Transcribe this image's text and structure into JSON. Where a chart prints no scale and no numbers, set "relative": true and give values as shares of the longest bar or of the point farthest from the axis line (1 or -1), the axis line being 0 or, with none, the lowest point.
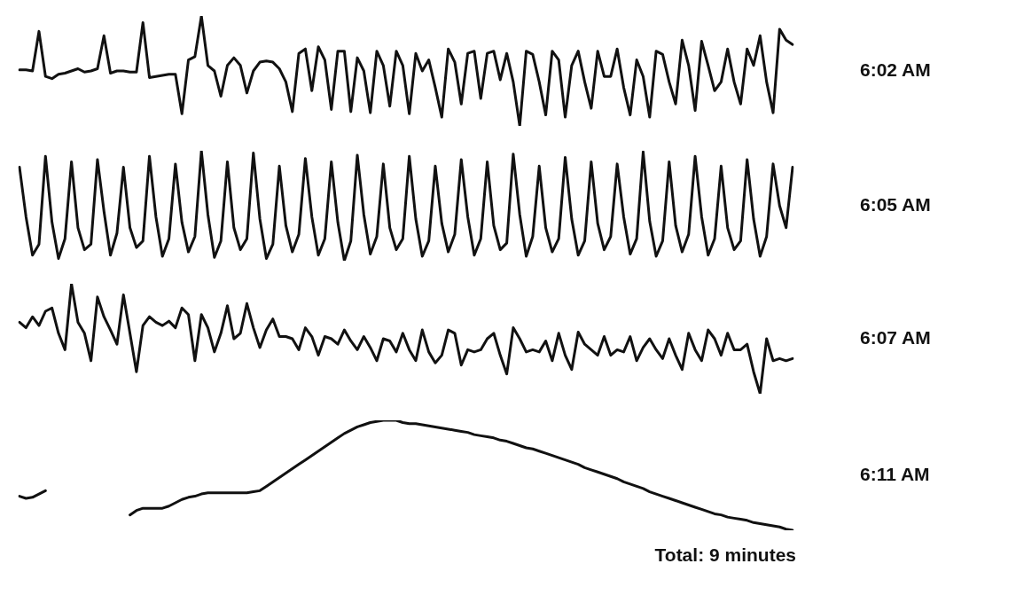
{
  "chart_data": [
    {
      "type": "line",
      "annotations": [
        "6:02 AM"
      ],
      "relative": true,
      "tick_labels": false,
      "categories": [
        null,
        null,
        null,
        null,
        null,
        null,
        null,
        null,
        null,
        null,
        null,
        null,
        null,
        null,
        null,
        null,
        null,
        null,
        null,
        null,
        null,
        null,
        null,
        null,
        null,
        null,
        null,
        null,
        null,
        null,
        null,
        null,
        null,
        null,
        null,
        null,
        null,
        null,
        null,
        null,
        null,
        null,
        null,
        null,
        null,
        null,
        null,
        null,
        null,
        null,
        null,
        null,
        null,
        null,
        null,
        null,
        null,
        null,
        null,
        null,
        null,
        null,
        null,
        null,
        null,
        null,
        null,
        null,
        null,
        null,
        null,
        null,
        null,
        null,
        null,
        null,
        null,
        null,
        null,
        null,
        null,
        null,
        null,
        null,
        null,
        null,
        null,
        null,
        null,
        null,
        null,
        null,
        null,
        null,
        null,
        null,
        null,
        null,
        null,
        null,
        null,
        null,
        null,
        null,
        null,
        null,
        null,
        null,
        null,
        null,
        null,
        null,
        null,
        null,
        null,
        null,
        null,
        null,
        null,
        null
      ],
      "series": [
        {
          "color": "#111111",
          "values": [
            0.51,
            0.51,
            0.5,
            0.86,
            0.45,
            0.43,
            0.47,
            0.48,
            0.5,
            0.52,
            0.49,
            0.5,
            0.52,
            0.82,
            0.48,
            0.5,
            0.5,
            0.49,
            0.49,
            0.94,
            0.44,
            0.45,
            0.46,
            0.47,
            0.47,
            0.11,
            0.6,
            0.63,
            1.0,
            0.55,
            0.5,
            0.27,
            0.55,
            0.62,
            0.55,
            0.3,
            0.5,
            0.58,
            0.59,
            0.58,
            0.52,
            0.4,
            0.13,
            0.66,
            0.7,
            0.32,
            0.72,
            0.6,
            0.15,
            0.68,
            0.68,
            0.13,
            0.62,
            0.5,
            0.12,
            0.68,
            0.55,
            0.18,
            0.68,
            0.55,
            0.11,
            0.66,
            0.5,
            0.6,
            0.35,
            0.08,
            0.7,
            0.58,
            0.2,
            0.66,
            0.68,
            0.25,
            0.66,
            0.68,
            0.42,
            0.66,
            0.4,
            0.0,
            0.68,
            0.65,
            0.4,
            0.1,
            0.68,
            0.6,
            0.08,
            0.55,
            0.68,
            0.4,
            0.16,
            0.68,
            0.45,
            0.45,
            0.7,
            0.35,
            0.1,
            0.6,
            0.45,
            0.08,
            0.68,
            0.65,
            0.4,
            0.2,
            0.78,
            0.55,
            0.14,
            0.77,
            0.55,
            0.32,
            0.4,
            0.7,
            0.4,
            0.2,
            0.7,
            0.55,
            0.82,
            0.4,
            0.12,
            0.88,
            0.78,
            0.74
          ]
        }
      ]
    },
    {
      "type": "line",
      "annotations": [
        "6:05 AM"
      ],
      "relative": true,
      "tick_labels": false,
      "categories": [
        null,
        null,
        null,
        null,
        null,
        null,
        null,
        null,
        null,
        null,
        null,
        null,
        null,
        null,
        null,
        null,
        null,
        null,
        null,
        null,
        null,
        null,
        null,
        null,
        null,
        null,
        null,
        null,
        null,
        null,
        null,
        null,
        null,
        null,
        null,
        null,
        null,
        null,
        null,
        null,
        null,
        null,
        null,
        null,
        null,
        null,
        null,
        null,
        null,
        null,
        null,
        null,
        null,
        null,
        null,
        null,
        null,
        null,
        null,
        null,
        null,
        null,
        null,
        null,
        null,
        null,
        null,
        null,
        null,
        null,
        null,
        null,
        null,
        null,
        null,
        null,
        null,
        null,
        null,
        null,
        null,
        null,
        null,
        null,
        null,
        null,
        null,
        null,
        null,
        null,
        null,
        null,
        null,
        null,
        null,
        null,
        null,
        null,
        null,
        null,
        null,
        null,
        null,
        null,
        null,
        null,
        null,
        null,
        null,
        null,
        null,
        null,
        null,
        null,
        null,
        null,
        null,
        null,
        null,
        null
      ],
      "series": [
        {
          "color": "#111111",
          "values": [
            0.85,
            0.4,
            0.05,
            0.15,
            0.95,
            0.35,
            0.02,
            0.2,
            0.9,
            0.3,
            0.1,
            0.15,
            0.92,
            0.45,
            0.05,
            0.25,
            0.85,
            0.3,
            0.12,
            0.18,
            0.95,
            0.4,
            0.04,
            0.2,
            0.88,
            0.35,
            0.08,
            0.22,
            1.0,
            0.42,
            0.03,
            0.18,
            0.9,
            0.3,
            0.1,
            0.2,
            0.98,
            0.38,
            0.02,
            0.15,
            0.86,
            0.32,
            0.08,
            0.24,
            0.93,
            0.4,
            0.05,
            0.2,
            0.9,
            0.35,
            0.0,
            0.18,
            0.96,
            0.42,
            0.06,
            0.22,
            0.88,
            0.3,
            0.1,
            0.2,
            0.95,
            0.38,
            0.04,
            0.18,
            0.86,
            0.34,
            0.08,
            0.24,
            0.92,
            0.4,
            0.05,
            0.2,
            0.9,
            0.32,
            0.1,
            0.16,
            0.97,
            0.42,
            0.04,
            0.22,
            0.86,
            0.3,
            0.08,
            0.2,
            0.94,
            0.38,
            0.05,
            0.18,
            0.9,
            0.34,
            0.1,
            0.22,
            0.88,
            0.4,
            0.06,
            0.2,
            0.99,
            0.36,
            0.04,
            0.18,
            0.9,
            0.32,
            0.08,
            0.24,
            0.95,
            0.4,
            0.05,
            0.2,
            0.86,
            0.3,
            0.1,
            0.18,
            0.92,
            0.38,
            0.04,
            0.22,
            0.88,
            0.5,
            0.3,
            0.85
          ]
        }
      ]
    },
    {
      "type": "line",
      "annotations": [
        "6:07 AM"
      ],
      "relative": true,
      "tick_labels": false,
      "categories": [
        null,
        null,
        null,
        null,
        null,
        null,
        null,
        null,
        null,
        null,
        null,
        null,
        null,
        null,
        null,
        null,
        null,
        null,
        null,
        null,
        null,
        null,
        null,
        null,
        null,
        null,
        null,
        null,
        null,
        null,
        null,
        null,
        null,
        null,
        null,
        null,
        null,
        null,
        null,
        null,
        null,
        null,
        null,
        null,
        null,
        null,
        null,
        null,
        null,
        null,
        null,
        null,
        null,
        null,
        null,
        null,
        null,
        null,
        null,
        null,
        null,
        null,
        null,
        null,
        null,
        null,
        null,
        null,
        null,
        null,
        null,
        null,
        null,
        null,
        null,
        null,
        null,
        null,
        null,
        null,
        null,
        null,
        null,
        null,
        null,
        null,
        null,
        null,
        null,
        null,
        null,
        null,
        null,
        null,
        null,
        null,
        null,
        null,
        null,
        null,
        null,
        null,
        null,
        null,
        null,
        null,
        null,
        null,
        null,
        null,
        null,
        null,
        null,
        null,
        null,
        null,
        null,
        null,
        null,
        null
      ],
      "series": [
        {
          "color": "#111111",
          "values": [
            0.65,
            0.6,
            0.7,
            0.62,
            0.75,
            0.78,
            0.55,
            0.4,
            1.0,
            0.65,
            0.55,
            0.3,
            0.88,
            0.7,
            0.58,
            0.45,
            0.9,
            0.55,
            0.2,
            0.62,
            0.7,
            0.65,
            0.62,
            0.66,
            0.6,
            0.78,
            0.72,
            0.3,
            0.72,
            0.6,
            0.38,
            0.55,
            0.8,
            0.5,
            0.55,
            0.82,
            0.6,
            0.42,
            0.58,
            0.68,
            0.52,
            0.52,
            0.5,
            0.4,
            0.6,
            0.52,
            0.35,
            0.52,
            0.5,
            0.45,
            0.58,
            0.48,
            0.4,
            0.52,
            0.42,
            0.3,
            0.5,
            0.48,
            0.38,
            0.55,
            0.4,
            0.3,
            0.58,
            0.38,
            0.28,
            0.35,
            0.58,
            0.55,
            0.26,
            0.4,
            0.38,
            0.4,
            0.5,
            0.55,
            0.35,
            0.18,
            0.6,
            0.5,
            0.38,
            0.4,
            0.38,
            0.48,
            0.3,
            0.55,
            0.35,
            0.22,
            0.56,
            0.45,
            0.4,
            0.35,
            0.52,
            0.35,
            0.4,
            0.38,
            0.52,
            0.3,
            0.42,
            0.5,
            0.4,
            0.32,
            0.5,
            0.35,
            0.22,
            0.55,
            0.4,
            0.3,
            0.58,
            0.5,
            0.35,
            0.55,
            0.4,
            0.4,
            0.45,
            0.2,
            0.0,
            0.5,
            0.3,
            0.32,
            0.3,
            0.32
          ]
        }
      ]
    },
    {
      "type": "line",
      "relative": true,
      "tick_labels": false,
      "annotations": [
        "6:11 AM",
        "Total: 9 minutes"
      ],
      "categories": [
        null,
        null,
        null,
        null,
        null,
        null,
        null,
        null,
        null,
        null,
        null,
        null,
        null,
        null,
        null,
        null,
        null,
        null,
        null,
        null,
        null,
        null,
        null,
        null,
        null,
        null,
        null,
        null,
        null,
        null,
        null,
        null,
        null,
        null,
        null,
        null,
        null,
        null,
        null,
        null,
        null,
        null,
        null,
        null,
        null,
        null,
        null,
        null,
        null,
        null,
        null,
        null,
        null,
        null,
        null,
        null,
        null,
        null,
        null,
        null,
        null,
        null,
        null,
        null,
        null,
        null,
        null,
        null,
        null,
        null,
        null,
        null,
        null,
        null,
        null,
        null,
        null,
        null,
        null,
        null,
        null,
        null,
        null,
        null,
        null,
        null,
        null,
        null,
        null,
        null,
        null,
        null,
        null,
        null,
        null,
        null,
        null,
        null,
        null,
        null,
        null,
        null,
        null,
        null,
        null,
        null,
        null,
        null,
        null,
        null,
        null,
        null,
        null,
        null,
        null,
        null,
        null,
        null,
        null,
        null
      ],
      "series": [
        {
          "color": "#111111",
          "values": [
            0.31,
            0.29,
            0.3,
            0.33,
            0.36,
            null,
            null,
            null,
            null,
            null,
            null,
            null,
            null,
            null,
            null,
            null,
            null,
            0.14,
            0.18,
            0.2,
            0.2,
            0.2,
            0.2,
            0.22,
            0.25,
            0.28,
            0.3,
            0.31,
            0.33,
            0.34,
            0.34,
            0.34,
            0.34,
            0.34,
            0.34,
            0.34,
            0.35,
            0.36,
            0.4,
            0.44,
            0.48,
            0.52,
            0.56,
            0.6,
            0.64,
            0.68,
            0.72,
            0.76,
            0.8,
            0.84,
            0.88,
            0.91,
            0.94,
            0.96,
            0.98,
            0.99,
            1.0,
            1.0,
            1.0,
            0.98,
            0.97,
            0.97,
            0.96,
            0.95,
            0.94,
            0.93,
            0.92,
            0.91,
            0.9,
            0.89,
            0.87,
            0.86,
            0.85,
            0.84,
            0.82,
            0.81,
            0.79,
            0.77,
            0.75,
            0.74,
            0.72,
            0.7,
            0.68,
            0.66,
            0.64,
            0.62,
            0.6,
            0.57,
            0.55,
            0.53,
            0.51,
            0.49,
            0.47,
            0.44,
            0.42,
            0.4,
            0.38,
            0.35,
            0.33,
            0.31,
            0.29,
            0.27,
            0.25,
            0.23,
            0.21,
            0.19,
            0.17,
            0.15,
            0.14,
            0.12,
            0.11,
            0.1,
            0.09,
            0.07,
            0.06,
            0.05,
            0.04,
            0.03,
            0.01,
            0
          ]
        }
      ]
    }
  ]
}
